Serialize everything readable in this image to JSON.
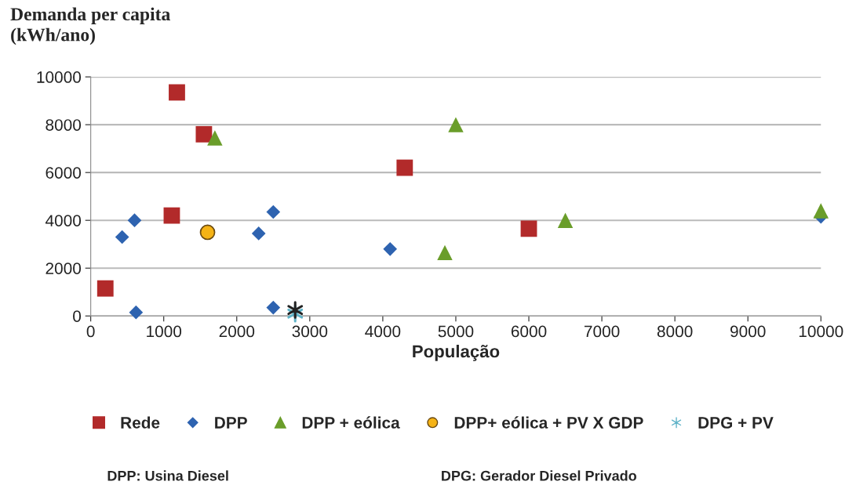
{
  "chart_data": {
    "type": "scatter",
    "ylabel": "Demanda per capita\n(kWh/ano)",
    "xlabel": "População",
    "xlim": [
      0,
      10000
    ],
    "xticks": [
      0,
      1000,
      2000,
      3000,
      4000,
      5000,
      6000,
      7000,
      8000,
      9000,
      10000
    ],
    "ylim": [
      0,
      10000
    ],
    "yticks": [
      0,
      2000,
      4000,
      6000,
      8000,
      10000
    ],
    "grid": "y",
    "legend": "bottom",
    "series": [
      {
        "name": "Rede",
        "color": "#b22a2a",
        "marker": "square",
        "x": [
          200,
          1180,
          1550,
          1110,
          4300,
          6000
        ],
        "values": [
          1150,
          9350,
          7600,
          4200,
          6200,
          3650
        ]
      },
      {
        "name": "DPP",
        "color": "#2e63b0",
        "marker": "diamond",
        "x": [
          430,
          600,
          620,
          2300,
          2500,
          2500,
          4100,
          10000
        ],
        "values": [
          3300,
          4000,
          150,
          3450,
          4350,
          350,
          2800,
          4150
        ]
      },
      {
        "name": "DPP + eólica",
        "color": "#6a9d2a",
        "marker": "triangle",
        "x": [
          1700,
          5000,
          4850,
          6500,
          10000
        ],
        "values": [
          7450,
          8000,
          2650,
          4000,
          4400
        ]
      },
      {
        "name": "DPP+ eólica + PV X GDP",
        "color": "#f5b316",
        "marker": "circle",
        "x": [
          1600
        ],
        "values": [
          3500
        ]
      },
      {
        "name": "DPG + PV",
        "color": "#5fb3c8",
        "marker": "cross",
        "x": [
          2800
        ],
        "values": [
          100
        ]
      },
      {
        "color": "#222222",
        "marker": "cross",
        "x": [
          2800
        ],
        "values": [
          250
        ]
      }
    ],
    "annotations": [
      "DPP: Usina Diesel",
      "DPG: Gerador Diesel Privado"
    ]
  }
}
